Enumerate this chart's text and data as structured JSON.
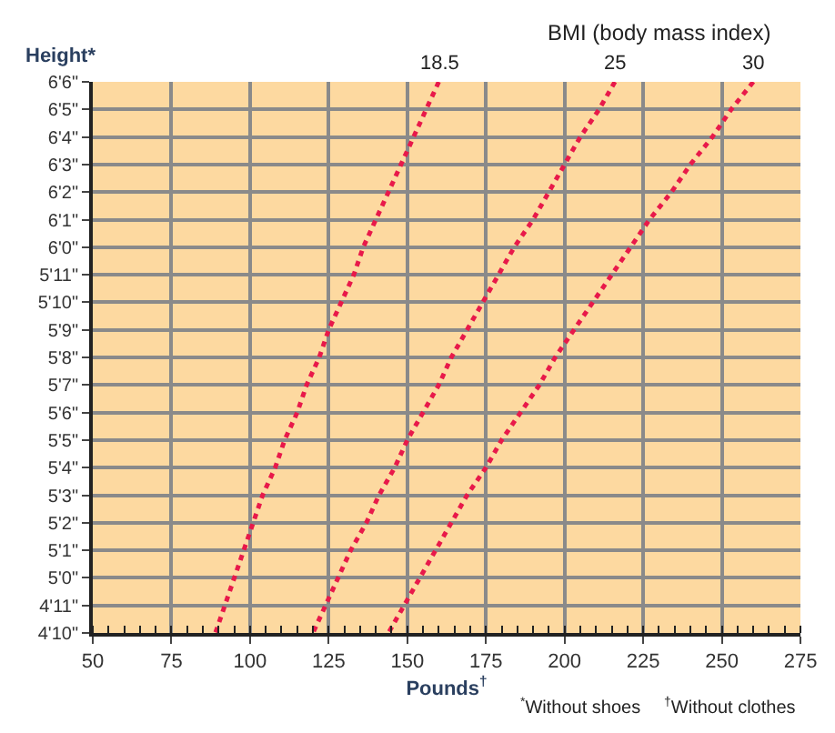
{
  "chart_data": {
    "type": "line",
    "orientation": "horizontal",
    "ylabel": "Height*",
    "xlabel": "Pounds$^{†}$",
    "annotations": [
      "BMI (body mass index)",
      "$^{*}$Without shoes",
      "$^{†}$Without clothes"
    ],
    "categories": [
      "6'6\"",
      "6'5\"",
      "6'4\"",
      "6'3\"",
      "6'2\"",
      "6'1\"",
      "6'0\"",
      "5'11\"",
      "5'10\"",
      "5'9\"",
      "5'8\"",
      "5'7\"",
      "5'6\"",
      "5'5\"",
      "5'4\"",
      "5'3\"",
      "5'2\"",
      "5'1\"",
      "5'0\"",
      "4'11\"",
      "4'10\""
    ],
    "series": [
      {
        "name": "18.5",
        "color": "#e8194a",
        "values": [
          160,
          156,
          152,
          148,
          144,
          140,
          136,
          133,
          129,
          125,
          122,
          118,
          115,
          111,
          108,
          104,
          101,
          98,
          95,
          92,
          89
        ]
      },
      {
        "name": "25",
        "color": "#e8194a",
        "values": [
          216,
          211,
          205,
          200,
          195,
          190,
          184,
          179,
          174,
          169,
          164,
          160,
          155,
          150,
          146,
          141,
          137,
          132,
          128,
          124,
          120
        ]
      },
      {
        "name": "30",
        "color": "#e8194a",
        "values": [
          260,
          253,
          247,
          240,
          234,
          227,
          221,
          215,
          209,
          203,
          197,
          192,
          186,
          180,
          175,
          169,
          164,
          159,
          154,
          149,
          144
        ]
      }
    ],
    "line_style": "dotted",
    "marker": "none",
    "grid": true,
    "xlim": [
      50,
      275
    ],
    "xticks": [
      50,
      75,
      100,
      125,
      150,
      175,
      200,
      225,
      250,
      275
    ]
  }
}
